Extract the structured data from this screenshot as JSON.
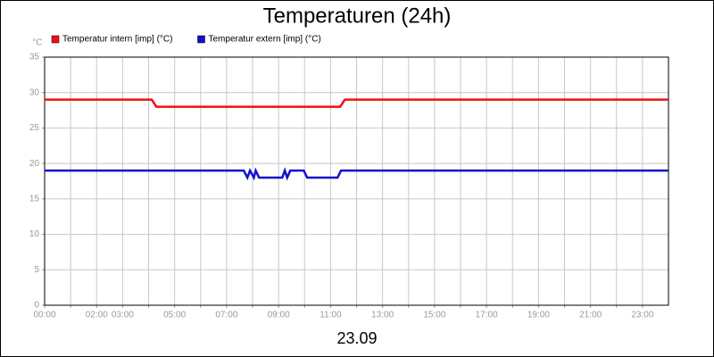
{
  "chart_data": {
    "type": "line",
    "title": "Temperaturen (24h)",
    "x_label": "23.09",
    "y_unit": "°C",
    "xlim": [
      0,
      24
    ],
    "xticks": [
      {
        "value": 0,
        "label": "00:00"
      },
      {
        "value": 1,
        "label": null
      },
      {
        "value": 2,
        "label": "02:00"
      },
      {
        "value": 3,
        "label": "03:00"
      },
      {
        "value": 4,
        "label": null
      },
      {
        "value": 5,
        "label": "05:00"
      },
      {
        "value": 6,
        "label": null
      },
      {
        "value": 7,
        "label": "07:00"
      },
      {
        "value": 8,
        "label": null
      },
      {
        "value": 9,
        "label": "09:00"
      },
      {
        "value": 10,
        "label": null
      },
      {
        "value": 11,
        "label": "11:00"
      },
      {
        "value": 12,
        "label": null
      },
      {
        "value": 13,
        "label": "13:00"
      },
      {
        "value": 14,
        "label": null
      },
      {
        "value": 15,
        "label": "15:00"
      },
      {
        "value": 16,
        "label": null
      },
      {
        "value": 17,
        "label": "17:00"
      },
      {
        "value": 18,
        "label": null
      },
      {
        "value": 19,
        "label": "19:00"
      },
      {
        "value": 20,
        "label": null
      },
      {
        "value": 21,
        "label": "21:00"
      },
      {
        "value": 22,
        "label": null
      },
      {
        "value": 23,
        "label": "23:00"
      }
    ],
    "ylim": [
      0,
      35
    ],
    "yticks": [
      0,
      5,
      10,
      15,
      20,
      25,
      30,
      35
    ],
    "grid": true,
    "legend": "top-left",
    "series": [
      {
        "name": "Temperatur intern [imp] (°C)",
        "color": "#ee1111",
        "x": [
          0,
          4.12,
          4.3,
          11.37,
          11.55,
          24
        ],
        "values": [
          29,
          29,
          28,
          28,
          29,
          29
        ]
      },
      {
        "name": "Temperatur extern [imp] (°C)",
        "color": "#1111cc",
        "x": [
          0,
          7.66,
          7.8,
          7.9,
          8.05,
          8.12,
          8.25,
          9.14,
          9.24,
          9.33,
          9.45,
          9.97,
          10.1,
          11.27,
          11.4,
          24
        ],
        "values": [
          19,
          19,
          18,
          19,
          18,
          19,
          18,
          18,
          19,
          18,
          19,
          19,
          18,
          18,
          19,
          19
        ]
      }
    ]
  }
}
